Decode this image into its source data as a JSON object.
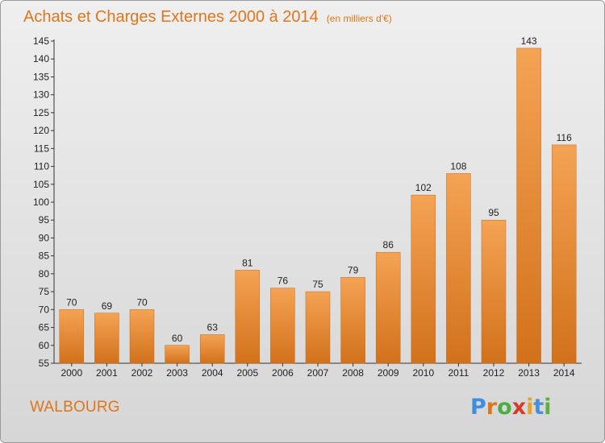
{
  "title": "Achats et Charges Externes 2000 à 2014",
  "subtitle": "(en milliers d'€)",
  "commune": "WALBOURG",
  "logo": {
    "letters": [
      "P",
      "r",
      "o",
      "x",
      "i",
      "t",
      "i"
    ],
    "colors": [
      "#3e8ee0",
      "#e0761a",
      "#4cae3f",
      "#d63a2b",
      "#e9a126",
      "#4a8fd9",
      "#5cb13e"
    ]
  },
  "colors": {
    "bar": "#e8862c",
    "title": "#e0761a"
  },
  "chart_data": {
    "type": "bar",
    "categories": [
      "2000",
      "2001",
      "2002",
      "2003",
      "2004",
      "2005",
      "2006",
      "2007",
      "2008",
      "2009",
      "2010",
      "2011",
      "2012",
      "2013",
      "2014"
    ],
    "values": [
      70,
      69,
      70,
      60,
      63,
      81,
      76,
      75,
      79,
      86,
      102,
      108,
      95,
      143,
      116
    ],
    "data_labels": [
      "70",
      "69",
      "70",
      "60",
      "63",
      "81",
      "76",
      "75",
      "79",
      "86",
      "102",
      "108",
      "95",
      "143",
      "116"
    ],
    "ylim": [
      55,
      145
    ],
    "yticks": [
      "55",
      "60",
      "65",
      "70",
      "75",
      "80",
      "85",
      "90",
      "95",
      "100",
      "105",
      "110",
      "115",
      "120",
      "125",
      "130",
      "135",
      "140",
      "145"
    ],
    "grid": false,
    "legend": "none"
  }
}
